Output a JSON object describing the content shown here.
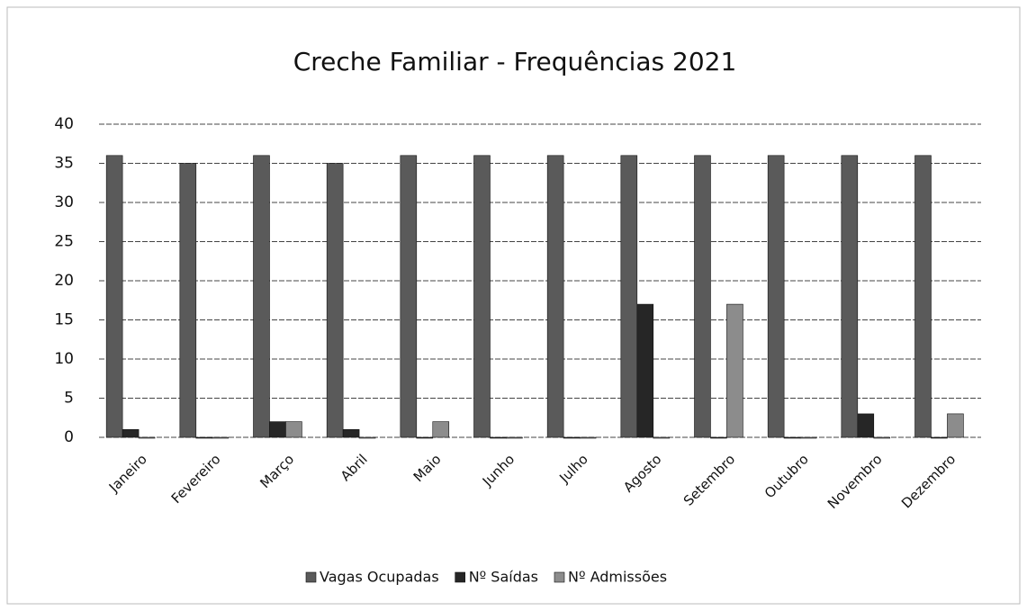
{
  "chart_data": {
    "type": "bar",
    "title": "Creche Familiar - Frequências 2021",
    "categories": [
      "Janeiro",
      "Fevereiro",
      "Março",
      "Abril",
      "Maio",
      "Junho",
      "Julho",
      "Agosto",
      "Setembro",
      "Outubro",
      "Novembro",
      "Dezembro"
    ],
    "series": [
      {
        "name": "Vagas Ocupadas",
        "color": "#5a5a5a",
        "values": [
          36,
          35,
          36,
          35,
          36,
          36,
          36,
          36,
          36,
          36,
          36,
          36
        ]
      },
      {
        "name": "Nº Saídas",
        "color": "#262626",
        "values": [
          1,
          0,
          2,
          1,
          0,
          0,
          0,
          17,
          0,
          0,
          3,
          0
        ]
      },
      {
        "name": "Nº Admissões",
        "color": "#8c8c8c",
        "values": [
          0,
          0,
          2,
          0,
          2,
          0,
          0,
          0,
          17,
          0,
          0,
          3
        ]
      }
    ],
    "ylim": [
      0,
      40
    ],
    "yticks": [
      0,
      5,
      10,
      15,
      20,
      25,
      30,
      35,
      40
    ],
    "grid": true,
    "legend": "bottom"
  }
}
